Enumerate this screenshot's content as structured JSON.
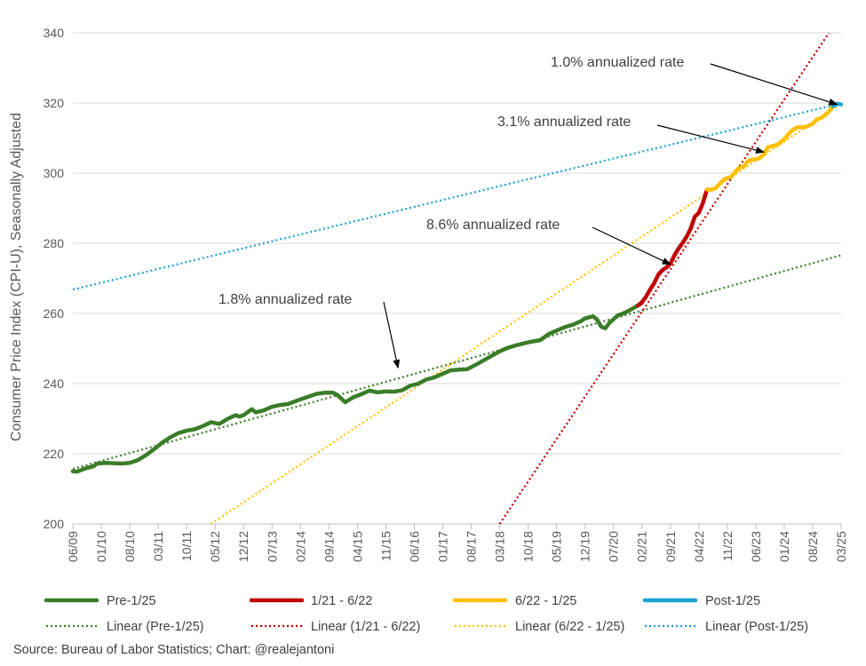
{
  "chart_data": {
    "type": "line",
    "title": "",
    "xlabel": "",
    "ylabel": "Consumer Price Index (CPI-U), Seasonally Adjusted",
    "ylim": [
      200,
      340
    ],
    "yticks": [
      200,
      220,
      240,
      260,
      280,
      300,
      320,
      340
    ],
    "x_start": "06/09",
    "x_end": "03/25",
    "xticks": [
      "06/09",
      "01/10",
      "08/10",
      "03/11",
      "10/11",
      "05/12",
      "12/12",
      "07/13",
      "02/14",
      "09/14",
      "04/15",
      "11/15",
      "06/16",
      "01/17",
      "08/17",
      "03/18",
      "10/18",
      "05/19",
      "12/19",
      "07/20",
      "02/21",
      "09/21",
      "04/22",
      "11/22",
      "06/23",
      "01/24",
      "08/24",
      "03/25"
    ],
    "series": [
      {
        "name": "Pre-1/25",
        "color": "#3A7D27",
        "points": [
          [
            "06/09",
            215.0
          ],
          [
            "07/09",
            214.9
          ],
          [
            "09/09",
            215.8
          ],
          [
            "11/09",
            216.4
          ],
          [
            "12/09",
            217.2
          ],
          [
            "02/10",
            217.4
          ],
          [
            "04/10",
            217.3
          ],
          [
            "06/10",
            217.2
          ],
          [
            "08/10",
            217.4
          ],
          [
            "10/10",
            218.2
          ],
          [
            "12/10",
            219.6
          ],
          [
            "02/11",
            221.3
          ],
          [
            "04/11",
            223.2
          ],
          [
            "06/11",
            224.7
          ],
          [
            "08/11",
            225.9
          ],
          [
            "10/11",
            226.6
          ],
          [
            "12/11",
            227.0
          ],
          [
            "02/12",
            227.9
          ],
          [
            "04/12",
            229.0
          ],
          [
            "06/12",
            228.5
          ],
          [
            "08/12",
            229.9
          ],
          [
            "10/12",
            231.0
          ],
          [
            "11/12",
            230.6
          ],
          [
            "12/12",
            231.0
          ],
          [
            "02/13",
            232.7
          ],
          [
            "03/13",
            231.8
          ],
          [
            "05/13",
            232.4
          ],
          [
            "07/13",
            233.4
          ],
          [
            "09/13",
            233.9
          ],
          [
            "11/13",
            234.2
          ],
          [
            "02/14",
            235.5
          ],
          [
            "04/14",
            236.3
          ],
          [
            "06/14",
            237.1
          ],
          [
            "08/14",
            237.4
          ],
          [
            "10/14",
            237.4
          ],
          [
            "11/14",
            236.8
          ],
          [
            "01/15",
            234.7
          ],
          [
            "03/15",
            236.1
          ],
          [
            "05/15",
            237.0
          ],
          [
            "07/15",
            238.0
          ],
          [
            "09/15",
            237.5
          ],
          [
            "11/15",
            237.8
          ],
          [
            "01/16",
            237.7
          ],
          [
            "03/16",
            238.1
          ],
          [
            "05/16",
            239.4
          ],
          [
            "07/16",
            240.0
          ],
          [
            "09/16",
            241.2
          ],
          [
            "11/16",
            241.8
          ],
          [
            "01/17",
            242.8
          ],
          [
            "03/17",
            243.8
          ],
          [
            "05/17",
            244.0
          ],
          [
            "07/17",
            244.1
          ],
          [
            "09/17",
            245.3
          ],
          [
            "11/17",
            246.6
          ],
          [
            "01/18",
            247.9
          ],
          [
            "03/18",
            249.2
          ],
          [
            "05/18",
            250.2
          ],
          [
            "07/18",
            250.9
          ],
          [
            "09/18",
            251.5
          ],
          [
            "11/18",
            252.0
          ],
          [
            "01/19",
            252.4
          ],
          [
            "03/19",
            254.1
          ],
          [
            "05/19",
            255.1
          ],
          [
            "07/19",
            256.1
          ],
          [
            "09/19",
            256.8
          ],
          [
            "11/19",
            257.8
          ],
          [
            "12/19",
            258.6
          ],
          [
            "02/20",
            259.2
          ],
          [
            "03/20",
            258.2
          ],
          [
            "04/20",
            256.2
          ],
          [
            "05/20",
            255.8
          ],
          [
            "06/20",
            257.3
          ],
          [
            "08/20",
            259.4
          ],
          [
            "10/20",
            260.3
          ],
          [
            "12/20",
            261.6
          ],
          [
            "02/21",
            263.0
          ]
        ]
      },
      {
        "name": "1/21 - 6/22",
        "color": "#C00000",
        "points": [
          [
            "01/21",
            262.2
          ],
          [
            "02/21",
            263.2
          ],
          [
            "03/21",
            264.8
          ],
          [
            "04/21",
            266.8
          ],
          [
            "05/21",
            268.6
          ],
          [
            "06/21",
            271.0
          ],
          [
            "07/21",
            272.3
          ],
          [
            "08/21",
            273.1
          ],
          [
            "09/21",
            274.2
          ],
          [
            "10/21",
            276.6
          ],
          [
            "11/21",
            278.5
          ],
          [
            "12/21",
            280.1
          ],
          [
            "01/22",
            281.9
          ],
          [
            "02/22",
            284.2
          ],
          [
            "03/22",
            287.6
          ],
          [
            "04/22",
            288.7
          ],
          [
            "05/22",
            291.5
          ],
          [
            "06/22",
            295.3
          ]
        ]
      },
      {
        "name": "6/22 - 1/25",
        "color": "#FFC000",
        "points": [
          [
            "06/22",
            295.3
          ],
          [
            "07/22",
            295.3
          ],
          [
            "08/22",
            295.6
          ],
          [
            "09/22",
            296.8
          ],
          [
            "10/22",
            298.0
          ],
          [
            "11/22",
            298.6
          ],
          [
            "12/22",
            299.0
          ],
          [
            "01/23",
            300.5
          ],
          [
            "02/23",
            301.6
          ],
          [
            "03/23",
            301.8
          ],
          [
            "04/23",
            303.4
          ],
          [
            "05/23",
            303.8
          ],
          [
            "06/23",
            304.0
          ],
          [
            "07/23",
            304.3
          ],
          [
            "08/23",
            305.5
          ],
          [
            "09/23",
            307.4
          ],
          [
            "10/23",
            307.7
          ],
          [
            "11/23",
            308.0
          ],
          [
            "12/23",
            308.7
          ],
          [
            "01/24",
            309.7
          ],
          [
            "02/24",
            311.1
          ],
          [
            "03/24",
            312.2
          ],
          [
            "04/24",
            313.0
          ],
          [
            "05/24",
            313.1
          ],
          [
            "06/24",
            313.1
          ],
          [
            "07/24",
            313.5
          ],
          [
            "08/24",
            314.1
          ],
          [
            "09/24",
            315.3
          ],
          [
            "10/24",
            315.7
          ],
          [
            "11/24",
            316.5
          ],
          [
            "12/24",
            317.6
          ],
          [
            "01/25",
            319.1
          ]
        ]
      },
      {
        "name": "Post-1/25",
        "color": "#1BA1D3",
        "points": [
          [
            "01/25",
            319.1
          ],
          [
            "02/25",
            319.8
          ],
          [
            "03/25",
            319.6
          ]
        ]
      }
    ],
    "trendlines": [
      {
        "name": "Linear (Pre-1/25)",
        "color": "#3A7D27",
        "from": [
          "06/09",
          215.7
        ],
        "to": [
          "03/25",
          276.6
        ]
      },
      {
        "name": "Linear (1/21 - 6/22)",
        "color": "#C00000",
        "from": [
          "03/18",
          200.0
        ],
        "to": [
          "12/24",
          340.0
        ]
      },
      {
        "name": "Linear (6/22 - 1/25)",
        "color": "#FFC000",
        "from": [
          "04/12",
          200.0
        ],
        "to": [
          "03/25",
          319.8
        ]
      },
      {
        "name": "Linear (Post-1/25)",
        "color": "#1BA1D3",
        "from": [
          "06/09",
          266.8
        ],
        "to": [
          "03/25",
          319.9
        ]
      }
    ],
    "annotations": [
      {
        "text": "1.0% annualized rate",
        "points_to": [
          "02/25",
          319.6
        ]
      },
      {
        "text": "3.1% annualized rate",
        "points_to": [
          "08/23",
          306.0
        ]
      },
      {
        "text": "8.6% annualized rate",
        "points_to": [
          "09/21",
          274.0
        ]
      },
      {
        "text": "1.8% annualized rate",
        "points_to": [
          "02/16",
          244.5
        ]
      }
    ],
    "legend": {
      "position": "bottom",
      "entries": [
        "Pre-1/25",
        "1/21 - 6/22",
        "6/22 - 1/25",
        "Post-1/25",
        "Linear (Pre-1/25)",
        "Linear (1/21 - 6/22)",
        "Linear (6/22 - 1/25)",
        "Linear (Post-1/25)"
      ]
    },
    "source": "Source: Bureau of Labor Statistics; Chart: @realejantoni"
  }
}
